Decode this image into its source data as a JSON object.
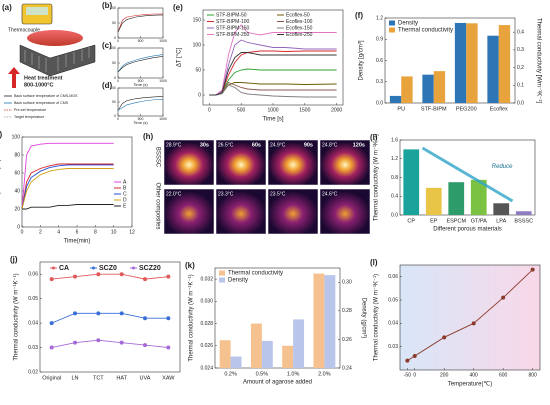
{
  "figure_a": {
    "label": "(a)",
    "meter": "Thermocouple",
    "heat": "Heat treatment",
    "range": "800-1000°C",
    "legend": [
      "Back surface temperature of CMS-MOS",
      "Back surface temperature of CMS",
      "Pre-set temperature",
      "Target temperature"
    ]
  },
  "figure_h": {
    "label": "(h)",
    "times": [
      "30s",
      "60s",
      "90s",
      "120s"
    ],
    "rows": [
      "BSSSC",
      "Other composites"
    ],
    "temps": [
      [
        "28.9°C",
        "26.5°C",
        "24.9°C",
        "24.8°C"
      ],
      [
        "22.0°C",
        "23.3°C",
        "23.5°C",
        "24.6°C"
      ]
    ]
  },
  "chart_data": [
    {
      "type": "line",
      "label": "(b)",
      "x": [
        0,
        100,
        200,
        400,
        600,
        800,
        1000
      ],
      "xlim": [
        0,
        1000
      ],
      "xticks": [
        0,
        500,
        1000
      ],
      "ylim": [
        0,
        100
      ],
      "yticks": [
        0,
        50,
        100
      ],
      "series": [
        {
          "color": "#d62728",
          "values": [
            20,
            60,
            70,
            75,
            78,
            80,
            80
          ]
        },
        {
          "color": "#222222",
          "values": [
            20,
            50,
            62,
            70,
            74,
            76,
            77
          ]
        }
      ]
    },
    {
      "type": "line",
      "label": "(c)",
      "xlabel": "Time (s)",
      "x": [
        0,
        100,
        200,
        400,
        600,
        800,
        1000
      ],
      "xlim": [
        0,
        1000
      ],
      "xticks": [
        0,
        500,
        1000
      ],
      "ylim": [
        0,
        100
      ],
      "yticks": [
        0,
        50,
        100
      ],
      "series": [
        {
          "color": "#1f77b4",
          "values": [
            20,
            40,
            50,
            60,
            68,
            74,
            78
          ]
        },
        {
          "color": "#222222",
          "values": [
            20,
            35,
            45,
            55,
            62,
            68,
            72
          ]
        }
      ]
    },
    {
      "type": "line",
      "label": "(d)",
      "xlabel": "Time (s)",
      "x": [
        0,
        100,
        200,
        400,
        600,
        800,
        1000
      ],
      "xlim": [
        0,
        1000
      ],
      "xticks": [
        0,
        500,
        1000
      ],
      "ylim": [
        0,
        100
      ],
      "yticks": [
        0,
        50,
        100
      ],
      "series": [
        {
          "color": "#222222",
          "values": [
            20,
            45,
            55,
            62,
            66,
            68,
            70
          ]
        },
        {
          "color": "#1f77b4",
          "values": [
            20,
            30,
            40,
            48,
            54,
            58,
            60
          ]
        }
      ]
    },
    {
      "type": "line",
      "label": "(e)",
      "xlabel": "Time [s]",
      "ylabel": "ΔT [°C]",
      "legend": "upper left",
      "x": [
        0,
        100,
        200,
        300,
        400,
        500,
        600,
        800,
        1000,
        1200,
        1500,
        2000
      ],
      "xlim": [
        -100,
        2100
      ],
      "xticks": [
        0,
        500,
        1000,
        1500,
        2000
      ],
      "ylim": [
        -20,
        170
      ],
      "yticks": [
        0,
        50,
        100,
        150
      ],
      "series": [
        {
          "name": "STF-BIPM-50",
          "color": "#2ca02c",
          "values": [
            0,
            0,
            5,
            30,
            45,
            50,
            52,
            50,
            50,
            50,
            50,
            50
          ]
        },
        {
          "name": "Ecoflex-50",
          "color": "#6b5b00",
          "values": [
            0,
            0,
            3,
            20,
            25,
            25,
            24,
            22,
            22,
            22,
            21,
            22
          ]
        },
        {
          "name": "STF-BIPM-100",
          "color": "#d62728",
          "values": [
            0,
            0,
            5,
            40,
            65,
            80,
            85,
            88,
            88,
            87,
            88,
            88
          ]
        },
        {
          "name": "Ecoflex-100",
          "color": "#8c564b",
          "values": [
            0,
            0,
            3,
            25,
            20,
            15,
            12,
            10,
            10,
            10,
            10,
            10
          ]
        },
        {
          "name": "STF-BIPM-150",
          "color": "#9467bd",
          "values": [
            0,
            0,
            8,
            60,
            100,
            110,
            105,
            100,
            95,
            95,
            92,
            92
          ]
        },
        {
          "name": "Ecoflex-150",
          "color": "#7f7f7f",
          "values": [
            0,
            0,
            3,
            20,
            15,
            5,
            2,
            0,
            -2,
            -3,
            -4,
            -4
          ]
        },
        {
          "name": "STF-BIPM-250",
          "color": "#e377c2",
          "values": [
            0,
            0,
            10,
            80,
            125,
            140,
            125,
            120,
            125,
            125,
            125,
            125
          ]
        },
        {
          "name": "Ecoflex-250",
          "color": "#333333",
          "values": [
            0,
            0,
            5,
            50,
            75,
            85,
            85,
            80,
            80,
            80,
            80,
            80
          ]
        }
      ]
    },
    {
      "type": "bar",
      "label": "(f)",
      "ylabel": "Density [g/cm³]",
      "y2label": "Thermal conductivity [Wm⁻¹K⁻¹]",
      "legend": "upper left",
      "categories": [
        "PU",
        "STF-BIPM",
        "PEG200",
        "Ecoflex"
      ],
      "ylim": [
        0,
        1.2
      ],
      "yticks": [
        {
          "value": 0,
          "label": "0.0"
        },
        0.3,
        0.6,
        0.9,
        1.2
      ],
      "y2lim": [
        0,
        0.48
      ],
      "y2ticks": [
        {
          "value": 0,
          "label": "0.0"
        },
        0.1,
        0.2,
        0.3,
        0.4
      ],
      "series": [
        {
          "name": "Density",
          "color": "#2e75b6",
          "values": [
            0.1,
            0.4,
            1.13,
            0.95
          ]
        },
        {
          "name": "Thermal conductivity",
          "color": "#e8a33d",
          "axis": "y2",
          "values": [
            0.15,
            0.18,
            0.45,
            0.44
          ]
        }
      ]
    },
    {
      "type": "line",
      "label": "(g)",
      "xlabel": "Time(min)",
      "ylabel": "Temperature (°C)",
      "legend": "center right",
      "x": [
        0,
        0.5,
        1,
        2,
        3,
        4,
        5,
        6,
        7,
        8,
        9,
        10
      ],
      "xlim": [
        0,
        12
      ],
      "xticks": [
        0,
        2,
        4,
        6,
        8,
        10,
        12
      ],
      "ylim": [
        0,
        100
      ],
      "yticks": [
        0,
        20,
        40,
        60,
        80,
        100
      ],
      "series": [
        {
          "name": "A",
          "color": "#e040e0",
          "values": [
            20,
            80,
            90,
            92,
            93,
            93,
            93,
            93,
            93,
            93,
            93,
            93
          ]
        },
        {
          "name": "B",
          "color": "#d62728",
          "values": [
            20,
            50,
            60,
            65,
            68,
            70,
            70,
            70,
            70,
            70,
            70,
            70
          ]
        },
        {
          "name": "C",
          "color": "#1f4fd6",
          "values": [
            20,
            45,
            55,
            62,
            66,
            68,
            69,
            69,
            69,
            69,
            69,
            69
          ]
        },
        {
          "name": "D",
          "color": "#d4a017",
          "values": [
            20,
            40,
            50,
            58,
            62,
            64,
            65,
            65,
            65,
            65,
            65,
            65
          ]
        },
        {
          "name": "E",
          "color": "#222222",
          "values": [
            20,
            20,
            22,
            22,
            22,
            24,
            24,
            25,
            25,
            25,
            25,
            25
          ]
        }
      ]
    },
    {
      "type": "bar",
      "label": "(i)",
      "xlabel": "Different porous materials",
      "ylabel": "Thermal conductivity (W m⁻¹K⁻¹)",
      "annotation": "Reduce",
      "categories": [
        "CP",
        "EP",
        "ESPCM",
        "GT/PA",
        "LPA",
        "BSSSC"
      ],
      "values": [
        1.4,
        0.58,
        0.7,
        0.75,
        0.25,
        0.08
      ],
      "colors": [
        "#1aa39a",
        "#e8c547",
        "#2e9c6a",
        "#7cc242",
        "#555555",
        "#8e7cc3"
      ],
      "ylim": [
        0,
        1.6
      ],
      "yticks": [
        {
          "value": 0,
          "label": "0.0"
        },
        0.4,
        0.8,
        1.2,
        1.6
      ]
    },
    {
      "type": "line",
      "label": "(j)",
      "ylabel": "Thermal conductivity (W m⁻¹K⁻¹)",
      "legend": "upper center",
      "markers": true,
      "categories": [
        "Original",
        "LN",
        "TCT",
        "HAT",
        "UVA",
        "XAW"
      ],
      "ylim": [
        0.02,
        0.065
      ],
      "yticks": [
        0.02,
        0.03,
        0.04,
        0.05,
        0.06
      ],
      "series": [
        {
          "name": "CA",
          "color": "#e05a5a",
          "values": [
            0.058,
            0.059,
            0.06,
            0.06,
            0.058,
            0.059
          ]
        },
        {
          "name": "SCZ0",
          "color": "#3a6fd8",
          "values": [
            0.04,
            0.044,
            0.044,
            0.044,
            0.042,
            0.042
          ]
        },
        {
          "name": "SCZ20",
          "color": "#a66ad8",
          "values": [
            0.03,
            0.032,
            0.033,
            0.032,
            0.031,
            0.03
          ]
        }
      ]
    },
    {
      "type": "bar",
      "label": "(k)",
      "xlabel": "Amount of agarose added",
      "ylabel": "Thermal conductivity (W m⁻¹K⁻¹)",
      "y2label": "Density (g/cm³)",
      "legend": "upper left",
      "categories": [
        "0.2%",
        "0.5%",
        "1.0%",
        "2.0%"
      ],
      "ylim": [
        0.024,
        0.033
      ],
      "yticks": [
        0.024,
        0.026,
        0.028,
        {
          "value": 0.03,
          "label": "0.030"
        },
        0.032
      ],
      "y2lim": [
        0.24,
        0.31
      ],
      "y2ticks": [
        0.24,
        0.26,
        0.28,
        {
          "value": 0.3,
          "label": "0.30"
        }
      ],
      "series": [
        {
          "name": "Thermal conductivity",
          "color": "#f5c28f",
          "values": [
            0.0265,
            0.028,
            0.026,
            0.0325
          ]
        },
        {
          "name": "Density",
          "color": "#b9c5ea",
          "axis": "y2",
          "values": [
            0.248,
            0.259,
            0.274,
            0.305
          ]
        }
      ]
    },
    {
      "type": "line",
      "label": "(l)",
      "xlabel": "Temperature(℃)",
      "ylabel": "Thermal conductivity (W m⁻¹K⁻¹)",
      "markers": true,
      "x": [
        -50,
        0,
        200,
        400,
        600,
        800
      ],
      "xlim": [
        -100,
        850
      ],
      "xticks": [
        -50,
        0,
        200,
        400,
        600,
        800
      ],
      "ylim": [
        0.02,
        0.065
      ],
      "yticks": [
        0.03,
        0.04,
        0.05,
        0.06
      ],
      "series": [
        {
          "color": "#8b3a2b",
          "values": [
            0.024,
            0.026,
            0.034,
            0.04,
            0.051,
            0.063
          ]
        }
      ]
    }
  ]
}
